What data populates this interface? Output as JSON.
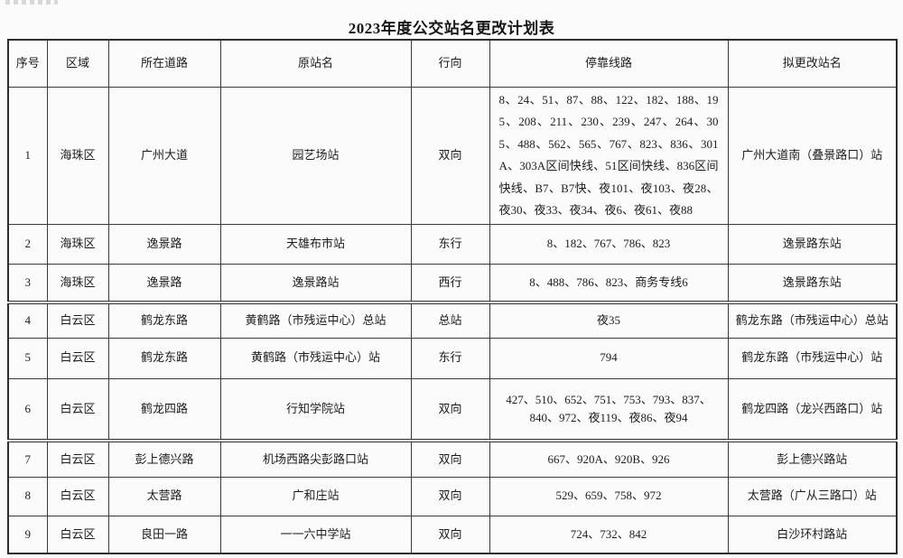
{
  "page": {
    "title": "2023年度公交站名更改计划表"
  },
  "table": {
    "headers": [
      "序号",
      "区域",
      "所在道路",
      "原站名",
      "行向",
      "停靠线路",
      "拟更改站名"
    ],
    "column_keys": [
      "no",
      "district",
      "road",
      "old_name",
      "direction",
      "routes",
      "new_name"
    ],
    "rows": [
      {
        "no": "1",
        "district": "海珠区",
        "road": "广州大道",
        "old_name": "园艺场站",
        "direction": "双向",
        "routes": "8、24、51、87、88、122、182、188、195、208、211、230、239、247、264、305、488、562、565、767、823、836、301A、303A区间快线、51区间快线、836区间快线、B7、B7快、夜101、夜103、夜28、夜30、夜33、夜34、夜6、夜61、夜88",
        "new_name": "广州大道南（叠景路口）站"
      },
      {
        "no": "2",
        "district": "海珠区",
        "road": "逸景路",
        "old_name": "天雄布市站",
        "direction": "东行",
        "routes": "8、182、767、786、823",
        "new_name": "逸景路东站"
      },
      {
        "no": "3",
        "district": "海珠区",
        "road": "逸景路",
        "old_name": "逸景路站",
        "direction": "西行",
        "routes": "8、488、786、823、商务专线6",
        "new_name": "逸景路东站"
      },
      {
        "no": "4",
        "district": "白云区",
        "road": "鹤龙东路",
        "old_name": "黄鹤路（市残运中心）总站",
        "direction": "总站",
        "routes": "夜35",
        "new_name": "鹤龙东路（市残运中心）总站"
      },
      {
        "no": "5",
        "district": "白云区",
        "road": "鹤龙东路",
        "old_name": "黄鹤路（市残运中心）站",
        "direction": "东行",
        "routes": "794",
        "new_name": "鹤龙东路（市残运中心）站"
      },
      {
        "no": "6",
        "district": "白云区",
        "road": "鹤龙四路",
        "old_name": "行知学院站",
        "direction": "双向",
        "routes": "427、510、652、751、753、793、837、840、972、夜119、夜86、夜94",
        "new_name": "鹤龙四路（龙兴西路口）站"
      },
      {
        "no": "7",
        "district": "白云区",
        "road": "彭上德兴路",
        "old_name": "机场西路尖彭路口站",
        "direction": "双向",
        "routes": "667、920A、920B、926",
        "new_name": "彭上德兴路站"
      },
      {
        "no": "8",
        "district": "白云区",
        "road": "太营路",
        "old_name": "广和庄站",
        "direction": "双向",
        "routes": "529、659、758、972",
        "new_name": "太营路（广从三路口）站"
      },
      {
        "no": "9",
        "district": "白云区",
        "road": "良田一路",
        "old_name": "一一六中学站",
        "direction": "双向",
        "routes": "724、732、842",
        "new_name": "白沙环村路站"
      }
    ]
  }
}
